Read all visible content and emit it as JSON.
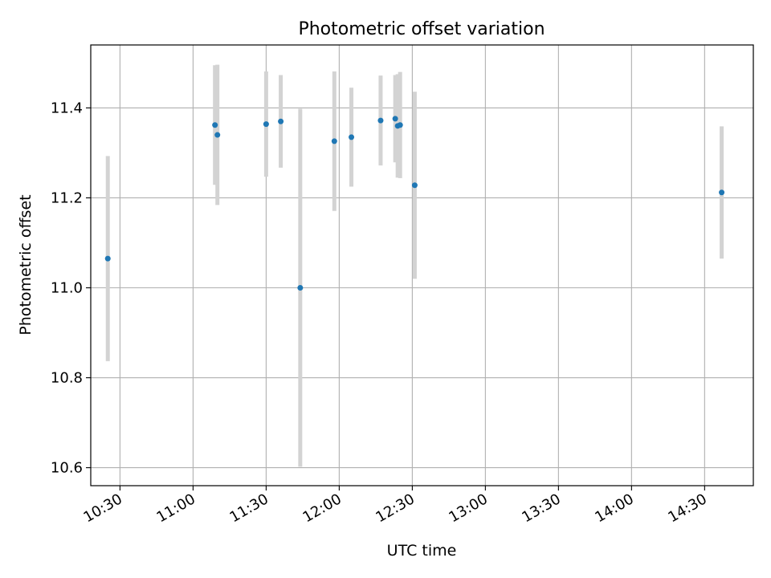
{
  "chart_data": {
    "type": "scatter",
    "title": "Photometric offset variation",
    "xlabel": "UTC time",
    "ylabel": "Photometric offset",
    "xlim": [
      "10:18",
      "14:50"
    ],
    "ylim": [
      10.56,
      11.54
    ],
    "x_ticks": [
      "10:30",
      "11:00",
      "11:30",
      "12:00",
      "12:30",
      "13:00",
      "13:30",
      "14:00",
      "14:30"
    ],
    "y_ticks": [
      10.6,
      10.8,
      11.0,
      11.2,
      11.4
    ],
    "y_tick_labels": [
      "10.6",
      "10.8",
      "11.0",
      "11.2",
      "11.4"
    ],
    "grid": true,
    "point_color": "#1f77b4",
    "errorbar_color": "#d3d3d3",
    "points": [
      {
        "time": "10:25",
        "y": 11.065,
        "err": 0.228
      },
      {
        "time": "11:09",
        "y": 11.362,
        "err": 0.133
      },
      {
        "time": "11:10",
        "y": 11.34,
        "err": 0.156
      },
      {
        "time": "11:30",
        "y": 11.364,
        "err": 0.117
      },
      {
        "time": "11:36",
        "y": 11.37,
        "err": 0.103
      },
      {
        "time": "11:44",
        "y": 11.0,
        "err": 0.398
      },
      {
        "time": "11:58",
        "y": 11.326,
        "err": 0.155
      },
      {
        "time": "12:05",
        "y": 11.335,
        "err": 0.11
      },
      {
        "time": "12:17",
        "y": 11.372,
        "err": 0.1
      },
      {
        "time": "12:23",
        "y": 11.376,
        "err": 0.097
      },
      {
        "time": "12:24",
        "y": 11.36,
        "err": 0.115
      },
      {
        "time": "12:25",
        "y": 11.362,
        "err": 0.118
      },
      {
        "time": "12:31",
        "y": 11.228,
        "err": 0.208
      },
      {
        "time": "14:37",
        "y": 11.212,
        "err": 0.147
      }
    ]
  }
}
